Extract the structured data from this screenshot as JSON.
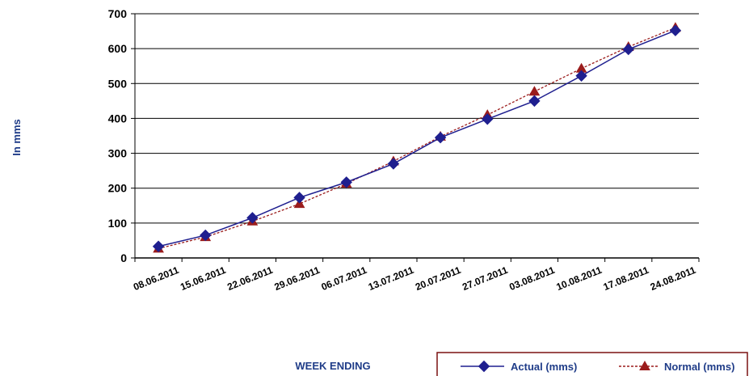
{
  "chart_data": {
    "type": "line",
    "title": "",
    "xlabel": "WEEK ENDING",
    "ylabel": "In mms",
    "ylim": [
      0,
      700
    ],
    "yticks": [
      "0",
      "100",
      "200",
      "300",
      "400",
      "500",
      "600",
      "700"
    ],
    "grid": true,
    "legend_position": "bottom-right",
    "categories": [
      "08.06.2011",
      "15.06.2011",
      "22.06.2011",
      "29.06.2011",
      "06.07.2011",
      "13.07.2011",
      "20.07.2011",
      "27.07.2011",
      "03.08.2011",
      "10.08.2011",
      "17.08.2011",
      "24.08.2011"
    ],
    "series": [
      {
        "name": "Actual (mms)",
        "color": "#1f1f8f",
        "marker": "diamond",
        "line": "solid",
        "values": [
          33,
          65,
          115,
          173,
          217,
          270,
          345,
          398,
          450,
          522,
          598,
          652
        ]
      },
      {
        "name": "Normal (mms)",
        "color": "#9b1c1c",
        "marker": "triangle",
        "line": "dashed",
        "values": [
          27,
          60,
          105,
          155,
          213,
          277,
          348,
          410,
          477,
          543,
          605,
          660
        ]
      }
    ]
  }
}
